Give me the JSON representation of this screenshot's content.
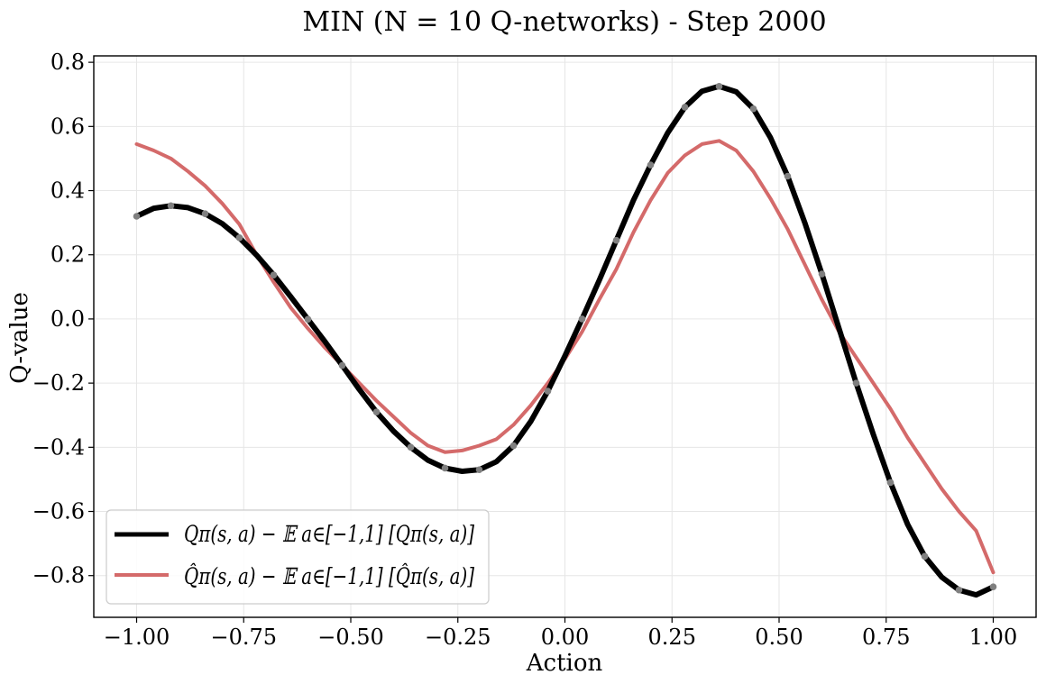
{
  "chart_data": {
    "type": "line",
    "title": "MIN (N = 10 Q-networks) - Step 2000",
    "xlabel": "Action",
    "ylabel": "Q-value",
    "xlim": [
      -1.1,
      1.1
    ],
    "ylim": [
      -0.93,
      0.82
    ],
    "grid": true,
    "legend_position": "lower-left",
    "x_ticks": [
      -1.0,
      -0.75,
      -0.5,
      -0.25,
      0.0,
      0.25,
      0.5,
      0.75,
      1.0
    ],
    "x_tick_labels": [
      "−1.00",
      "−0.75",
      "−0.50",
      "−0.25",
      "0.00",
      "0.25",
      "0.50",
      "0.75",
      "1.00"
    ],
    "y_ticks": [
      -0.8,
      -0.6,
      -0.4,
      -0.2,
      0.0,
      0.2,
      0.4,
      0.6,
      0.8
    ],
    "y_tick_labels": [
      "−0.8",
      "−0.6",
      "−0.4",
      "−0.2",
      "0.0",
      "0.2",
      "0.4",
      "0.6",
      "0.8"
    ],
    "series": [
      {
        "name": "Qπ(s, a) − 𝔼 a∈[−1,1] [Qπ(s, a)]",
        "color": "#000000",
        "marker_color": "#808080",
        "x": [
          -1.0,
          -0.96,
          -0.92,
          -0.88,
          -0.84,
          -0.8,
          -0.76,
          -0.72,
          -0.68,
          -0.64,
          -0.6,
          -0.56,
          -0.52,
          -0.48,
          -0.44,
          -0.4,
          -0.36,
          -0.32,
          -0.28,
          -0.24,
          -0.2,
          -0.16,
          -0.12,
          -0.08,
          -0.04,
          0.0,
          0.04,
          0.08,
          0.12,
          0.16,
          0.2,
          0.24,
          0.28,
          0.32,
          0.36,
          0.4,
          0.44,
          0.48,
          0.52,
          0.56,
          0.6,
          0.64,
          0.68,
          0.72,
          0.76,
          0.8,
          0.84,
          0.88,
          0.92,
          0.96,
          1.0
        ],
        "y": [
          0.32,
          0.345,
          0.353,
          0.347,
          0.328,
          0.297,
          0.253,
          0.199,
          0.137,
          0.069,
          -0.001,
          -0.071,
          -0.145,
          -0.22,
          -0.29,
          -0.35,
          -0.4,
          -0.44,
          -0.465,
          -0.475,
          -0.47,
          -0.445,
          -0.395,
          -0.32,
          -0.225,
          -0.115,
          0.0,
          0.12,
          0.245,
          0.37,
          0.48,
          0.58,
          0.66,
          0.71,
          0.725,
          0.708,
          0.655,
          0.565,
          0.445,
          0.3,
          0.14,
          -0.03,
          -0.2,
          -0.36,
          -0.51,
          -0.64,
          -0.74,
          -0.805,
          -0.845,
          -0.86,
          -0.835
        ]
      },
      {
        "name": "Q̂π(s, a) − 𝔼 a∈[−1,1] [Q̂π(s, a)]",
        "color": "#d46a6a",
        "x": [
          -1.0,
          -0.96,
          -0.92,
          -0.88,
          -0.84,
          -0.8,
          -0.76,
          -0.72,
          -0.68,
          -0.64,
          -0.6,
          -0.56,
          -0.52,
          -0.48,
          -0.44,
          -0.4,
          -0.36,
          -0.32,
          -0.28,
          -0.24,
          -0.2,
          -0.16,
          -0.12,
          -0.08,
          -0.04,
          0.0,
          0.04,
          0.08,
          0.12,
          0.16,
          0.2,
          0.24,
          0.28,
          0.32,
          0.36,
          0.4,
          0.44,
          0.48,
          0.52,
          0.56,
          0.6,
          0.64,
          0.68,
          0.72,
          0.76,
          0.8,
          0.84,
          0.88,
          0.92,
          0.96,
          1.0
        ],
        "y": [
          0.545,
          0.525,
          0.5,
          0.46,
          0.415,
          0.36,
          0.295,
          0.2,
          0.115,
          0.035,
          -0.03,
          -0.09,
          -0.145,
          -0.2,
          -0.255,
          -0.305,
          -0.355,
          -0.395,
          -0.415,
          -0.41,
          -0.395,
          -0.375,
          -0.33,
          -0.27,
          -0.2,
          -0.125,
          -0.04,
          0.06,
          0.155,
          0.27,
          0.37,
          0.455,
          0.51,
          0.545,
          0.555,
          0.525,
          0.46,
          0.375,
          0.28,
          0.17,
          0.06,
          -0.04,
          -0.12,
          -0.2,
          -0.28,
          -0.37,
          -0.45,
          -0.53,
          -0.6,
          -0.66,
          -0.79
        ]
      }
    ]
  }
}
